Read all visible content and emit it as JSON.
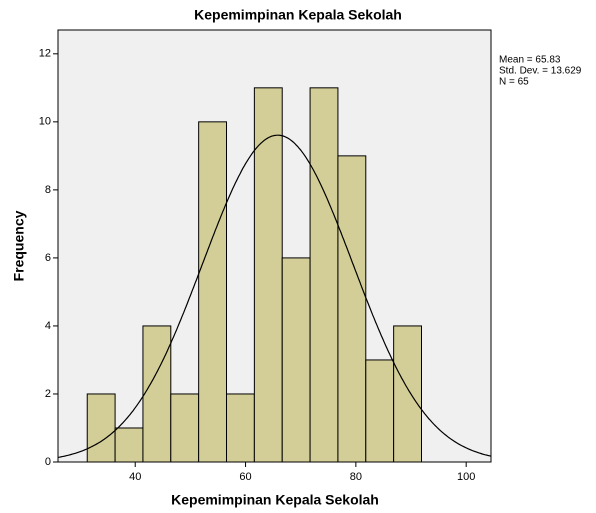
{
  "chart_data": {
    "type": "histogram",
    "title": "Kepemimpinan Kepala Sekolah",
    "x_label": "Kepemimpinan Kepala Sekolah",
    "y_label": "Frequency",
    "bins": [
      31.3,
      36.35,
      41.4,
      46.45,
      51.5,
      56.55,
      61.6,
      66.65,
      71.7,
      76.75,
      81.8,
      86.85,
      91.9
    ],
    "values": [
      2,
      1,
      4,
      2,
      10,
      2,
      11,
      6,
      11,
      9,
      3,
      4
    ],
    "color": "#d3ce97",
    "xlim": [
      26,
      104.5
    ],
    "xticks": [
      40,
      60,
      80,
      100
    ],
    "ylim": [
      0,
      12.7
    ],
    "yticks": [
      0,
      2,
      4,
      6,
      8,
      10,
      12
    ],
    "normal_curve": true,
    "stats": {
      "mean": {
        "value": 65.83,
        "label": "Mean = 65.83"
      },
      "std_dev": {
        "value": 13.629,
        "label": "Std. Dev. = 13.629"
      },
      "n": {
        "value": 65,
        "label": "N = 65"
      }
    }
  }
}
